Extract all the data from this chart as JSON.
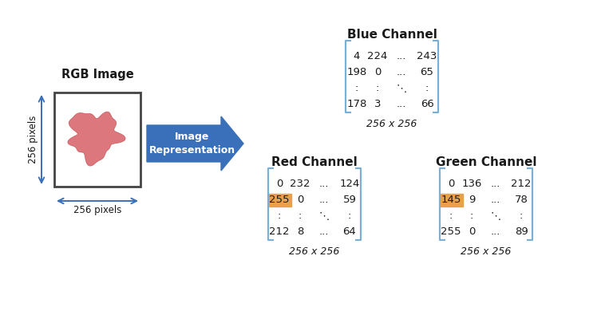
{
  "bg_color": "#ffffff",
  "rgb_image_label": "RGB Image",
  "pixels_256": "256 pixels",
  "image_representation": "Image\nRepresentation",
  "red_channel": {
    "title": "Red Channel",
    "rows": [
      [
        "0",
        "232",
        "...",
        "124"
      ],
      [
        "255",
        "0",
        "...",
        "59"
      ],
      [
        ":",
        ":",
        "⋱",
        ":"
      ],
      [
        "212",
        "8",
        "...",
        "64"
      ]
    ],
    "size_label": "256 x 256",
    "bracket_color": "#7bafd4",
    "highlight_cell": [
      1,
      0
    ],
    "highlight_color": "#e8a04a"
  },
  "green_channel": {
    "title": "Green Channel",
    "rows": [
      [
        "0",
        "136",
        "...",
        "212"
      ],
      [
        "145",
        "9",
        "...",
        "78"
      ],
      [
        ":",
        ":",
        "⋱",
        ":"
      ],
      [
        "255",
        "0",
        "...",
        "89"
      ]
    ],
    "size_label": "256 x 256",
    "bracket_color": "#7bafd4",
    "highlight_cell": [
      1,
      0
    ],
    "highlight_color": "#e8a04a"
  },
  "blue_channel": {
    "title": "Blue Channel",
    "rows": [
      [
        "4",
        "224",
        "...",
        "243"
      ],
      [
        "198",
        "0",
        "...",
        "65"
      ],
      [
        ":",
        ":",
        "⋱",
        ":"
      ],
      [
        "178",
        "3",
        "...",
        "66"
      ]
    ],
    "size_label": "256 x 256",
    "bracket_color": "#7bafd4"
  },
  "arrow_color": "#3a6fba",
  "arrow_text_color": "#ffffff",
  "text_color": "#1a1a1a",
  "cell_fontsize": 9.5,
  "title_fontsize": 11,
  "label_fontsize": 9,
  "blob_color": "#d96870",
  "blob_edge_color": "#c45055",
  "img_border_color": "#444444",
  "dim_arrow_color": "#3a6fba",
  "dim_text_color": "#1a1a1a"
}
